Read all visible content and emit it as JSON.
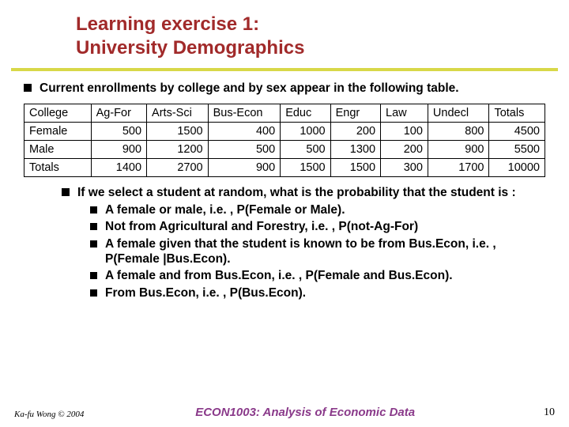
{
  "colors": {
    "title": "#a12a2a",
    "underline": "#d8d848",
    "bullet": "#000000",
    "border": "#000000",
    "footer_center": "#8a3a8a",
    "text": "#000000"
  },
  "title": {
    "line1": "Learning exercise 1:",
    "line2": "University Demographics"
  },
  "intro": "Current enrollments by college and by sex appear in the following table.",
  "table": {
    "columns": [
      "College",
      "Ag-For",
      "Arts-Sci",
      "Bus-Econ",
      "Educ",
      "Engr",
      "Law",
      "Undecl",
      "Totals"
    ],
    "col_widths": [
      "12%",
      "10%",
      "11%",
      "13%",
      "9%",
      "9%",
      "8.5%",
      "11%",
      "10%"
    ],
    "rows": [
      {
        "label": "Female",
        "values": [
          500,
          1500,
          400,
          1000,
          200,
          100,
          800,
          4500
        ]
      },
      {
        "label": "Male",
        "values": [
          900,
          1200,
          500,
          500,
          1300,
          200,
          900,
          5500
        ]
      },
      {
        "label": "Totals",
        "values": [
          1400,
          2700,
          900,
          1500,
          1500,
          300,
          1700,
          10000
        ]
      }
    ]
  },
  "question": {
    "lead": "If we select a student at random, what is the probability that the student is :",
    "items": [
      "A female or male, i.e. , P(Female or Male).",
      "Not from Agricultural and Forestry, i.e. , P(not-Ag-For)",
      "A female given that the student is known to be from Bus.Econ, i.e. , P(Female |Bus.Econ).",
      "A female and from Bus.Econ, i.e. , P(Female and Bus.Econ).",
      "From Bus.Econ, i.e. , P(Bus.Econ)."
    ]
  },
  "footer": {
    "left": "Ka-fu Wong © 2004",
    "center": "ECON1003: Analysis of Economic Data",
    "page": "10"
  }
}
